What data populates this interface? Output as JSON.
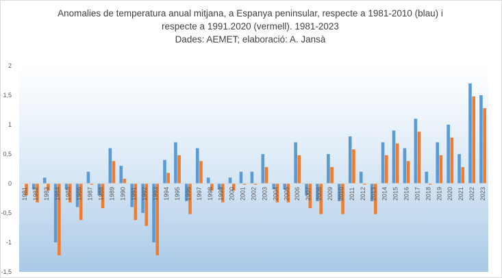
{
  "chart_data": {
    "type": "bar",
    "title": [
      "Anomalies de temperatura anual mitjana, a Espanya peninsular, respecte a 1981-2010 (blau) i",
      "respecte a 1991.2020 (vermell). 1981-2023",
      "Dades: AEMET; elaboració: A. Jansà"
    ],
    "xlabel": "",
    "ylabel": "",
    "ylim": [
      -1.5,
      2
    ],
    "yticks": [
      "-1,5",
      "-1",
      "-0,5",
      "0",
      "0,5",
      "1",
      "1,5",
      "2"
    ],
    "ytick_values": [
      -1.5,
      -1,
      -0.5,
      0,
      0.5,
      1,
      1.5,
      2
    ],
    "grid": false,
    "legend": "none",
    "colors": {
      "series_1981_2010": "#5b9bd5",
      "series_1991_2020": "#ed7d31"
    },
    "categories": [
      "1981",
      "1982",
      "1983",
      "1984",
      "1985",
      "1986",
      "1987",
      "1988",
      "1989",
      "1990",
      "1991",
      "1992",
      "1993",
      "1994",
      "1995",
      "1996",
      "1997",
      "1998",
      "1999",
      "2000",
      "2001",
      "2002",
      "2003",
      "2004",
      "2005",
      "2006",
      "2007",
      "2008",
      "2009",
      "2010",
      "2011",
      "2012",
      "2013",
      "2014",
      "2015",
      "2016",
      "2017",
      "2018",
      "2019",
      "2020",
      "2021",
      "2022",
      "2023"
    ],
    "series": [
      {
        "values": [
          0,
          -0.1,
          0.1,
          -1.0,
          -0.1,
          -0.4,
          0.2,
          -0.2,
          0.6,
          0.3,
          -0.4,
          -0.5,
          -1.0,
          0.4,
          0.7,
          -0.3,
          0.6,
          0.1,
          -0.1,
          0.1,
          0.2,
          0.2,
          0.5,
          -0.1,
          -0.1,
          0.7,
          -0.2,
          -0.3,
          0.5,
          -0.3,
          0.8,
          0.2,
          -0.3,
          0.7,
          0.9,
          0.6,
          1.1,
          0.2,
          0.7,
          1.0,
          0.5,
          1.7,
          1.5
        ]
      },
      {
        "values": [
          -0.2,
          -0.32,
          -0.12,
          -1.22,
          -0.32,
          -0.62,
          -0.02,
          -0.42,
          0.38,
          0.08,
          -0.62,
          -0.72,
          -1.22,
          0.18,
          0.48,
          -0.52,
          0.38,
          -0.12,
          -0.32,
          -0.12,
          -0.02,
          -0.02,
          0.28,
          -0.32,
          -0.32,
          0.48,
          -0.42,
          -0.52,
          0.28,
          -0.52,
          0.58,
          -0.02,
          -0.52,
          0.48,
          0.68,
          0.38,
          0.88,
          -0.02,
          0.48,
          0.78,
          0.28,
          1.48,
          1.28
        ]
      }
    ]
  }
}
